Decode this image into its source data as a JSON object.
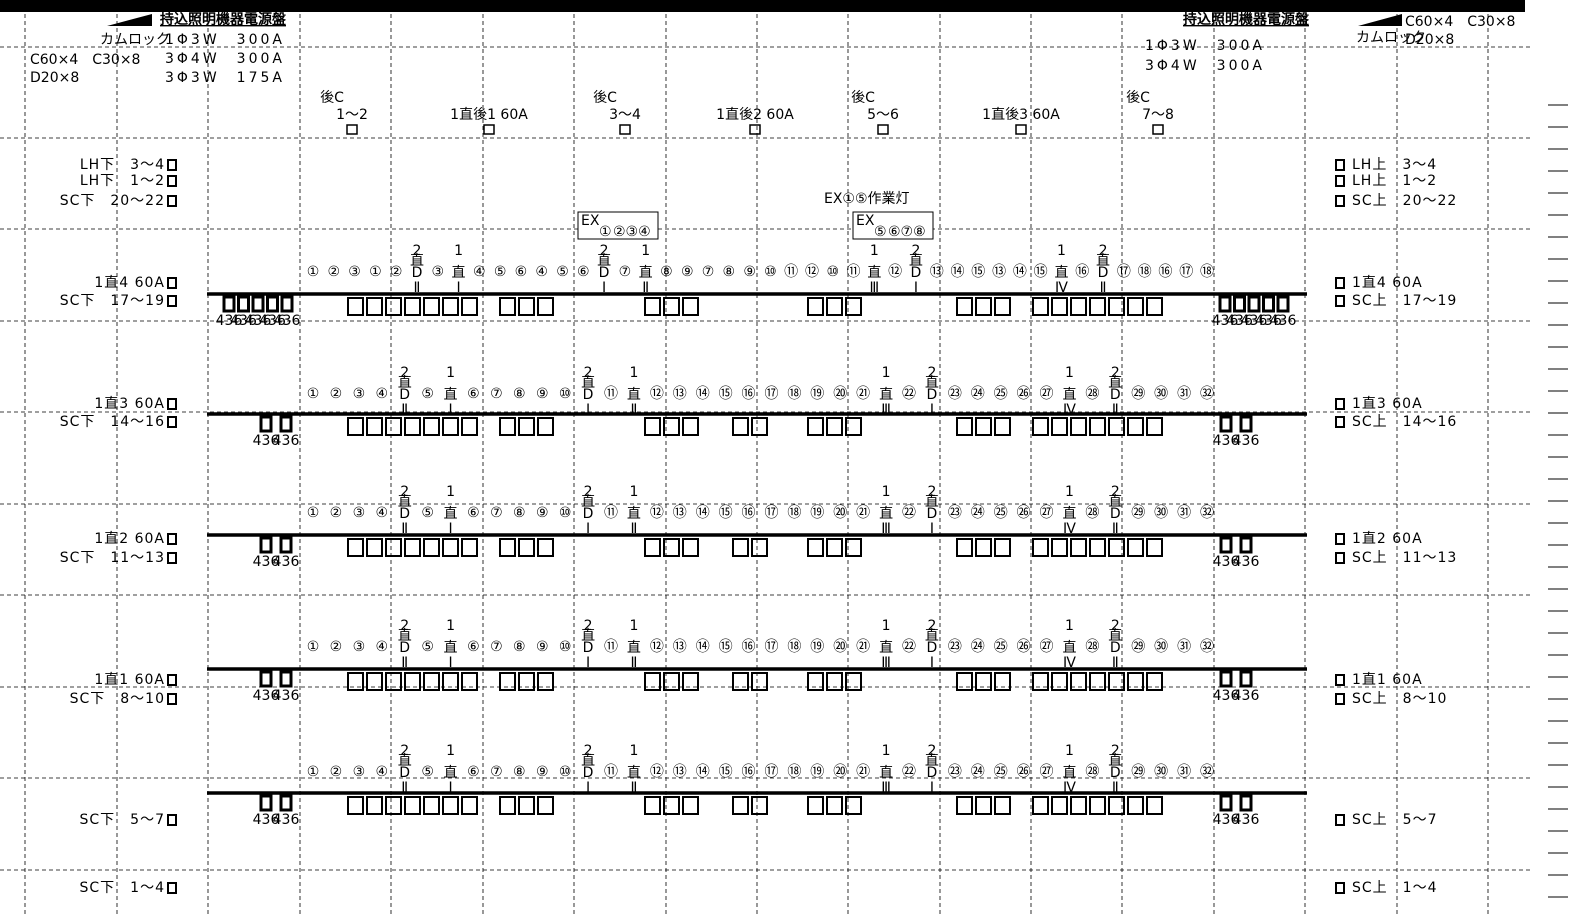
{
  "header_left": {
    "title": "持込照明機器電源盤",
    "camlock": "カムロック",
    "connectors": [
      "C60×4　C30×8",
      "D20×8"
    ],
    "specs": [
      "1Φ3W　300A",
      "3Φ4W　300A",
      "3Φ3W　175A"
    ]
  },
  "header_right": {
    "title": "持込照明機器電源盤",
    "camlock": "カムロック",
    "connectors": [
      "C60×4　C30×8",
      "D20×8"
    ],
    "specs": [
      "1Φ3W　300A",
      "3Φ4W　300A"
    ]
  },
  "outlets": [
    [
      "後C",
      "1～2"
    ],
    [
      "1直後1 60A"
    ],
    [
      "後C",
      "3～4"
    ],
    [
      "1直後2 60A"
    ],
    [
      "後C",
      "5～6"
    ],
    [
      "1直後3 60A"
    ],
    [
      "後C",
      "7～8"
    ]
  ],
  "ex": {
    "work_light": "EX①⑤作業灯",
    "boxes": [
      {
        "label": "EX",
        "first": "①",
        "rest": "②③④"
      },
      {
        "label": "EX",
        "first": "⑤",
        "rest": "⑥⑦⑧"
      }
    ]
  },
  "left_labels": [
    [
      "LH下　3～4",
      "LH下　1～2",
      "SC下　20～22"
    ],
    [
      "1直4 60A",
      "SC下　17～19"
    ],
    [
      "1直3 60A",
      "SC下　14～16"
    ],
    [
      "1直2 60A",
      "SC下　11～13"
    ],
    [
      "1直1 60A",
      "SC下　8～10"
    ],
    [
      "SC下　5～7"
    ],
    [
      "SC下　1～4"
    ]
  ],
  "right_labels": [
    [
      "LH上　3～4",
      "LH上　1～2",
      "SC上　20～22"
    ],
    [
      "1直4 60A",
      "SC上　17～19"
    ],
    [
      "1直3 60A",
      "SC上　14～16"
    ],
    [
      "1直2 60A",
      "SC上　11～13"
    ],
    [
      "1直1 60A",
      "SC上　8～10"
    ],
    [
      "SC上　5～7"
    ],
    [
      "SC上　1～4"
    ]
  ],
  "rows": [
    {
      "tokens": [
        "①",
        "②",
        "③",
        "①",
        "②",
        {
          "top": "2",
          "sub": "直",
          "text": "D",
          "bottom": "Ⅱ",
          "color": "#e8141e"
        },
        "③",
        {
          "top": "1",
          "text": "直",
          "bottom": "Ⅰ",
          "color": "#19c8dc"
        },
        "④",
        "⑤",
        "⑥",
        "④",
        "⑤",
        "⑥",
        {
          "top": "2",
          "sub": "直",
          "text": "D",
          "bottom": "Ⅰ",
          "color": "#1e28dc"
        },
        "⑦",
        {
          "top": "1",
          "text": "直",
          "bottom": "Ⅱ",
          "color": "#28c828"
        },
        "⑧",
        "⑨",
        "⑦",
        "⑧",
        "⑨",
        "⑩",
        "⑪",
        "⑫",
        "⑩",
        "⑪",
        {
          "top": "1",
          "text": "直",
          "bottom": "Ⅲ",
          "color": "#f078dc"
        },
        "⑫",
        {
          "top": "2",
          "sub": "直",
          "text": "D",
          "bottom": "Ⅰ",
          "color": "#1e28dc"
        },
        "⑬",
        "⑭",
        "⑮",
        "⑬",
        "⑭",
        "⑮",
        {
          "top": "1",
          "text": "直",
          "bottom": "Ⅳ",
          "color": "#b46414"
        },
        "⑯",
        {
          "top": "2",
          "sub": "直",
          "text": "D",
          "bottom": "Ⅱ",
          "color": "#e8141e"
        },
        "⑰",
        "⑱",
        "⑯",
        "⑰",
        "⑱"
      ],
      "fixtures_left": [
        "436",
        "436",
        "436",
        "436",
        "436"
      ],
      "fixtures_right": [
        "436",
        "436",
        "436",
        "436",
        "436"
      ]
    },
    {
      "tokens": [
        "①",
        "②",
        "③",
        "④",
        {
          "top": "2",
          "sub": "直",
          "text": "D",
          "bottom": "Ⅱ",
          "color": "#e8141e"
        },
        "⑤",
        {
          "top": "1",
          "text": "直",
          "bottom": "Ⅰ",
          "color": "#19c8dc"
        },
        "⑥",
        "⑦",
        "⑧",
        "⑨",
        "⑩",
        {
          "top": "2",
          "sub": "直",
          "text": "D",
          "bottom": "Ⅰ",
          "color": "#1e28dc"
        },
        "⑪",
        {
          "top": "1",
          "text": "直",
          "bottom": "Ⅱ",
          "color": "#28c828"
        },
        "⑫",
        "⑬",
        "⑭",
        "⑮",
        "⑯",
        "⑰",
        "⑱",
        "⑲",
        "⑳",
        "㉑",
        {
          "top": "1",
          "text": "直",
          "bottom": "Ⅲ",
          "color": "#f078dc"
        },
        "㉒",
        {
          "top": "2",
          "sub": "直",
          "text": "D",
          "bottom": "Ⅰ",
          "color": "#1e28dc"
        },
        "㉓",
        "㉔",
        "㉕",
        "㉖",
        "㉗",
        {
          "top": "1",
          "text": "直",
          "bottom": "Ⅳ",
          "color": "#b46414"
        },
        "㉘",
        {
          "top": "2",
          "sub": "直",
          "text": "D",
          "bottom": "Ⅱ",
          "color": "#e8141e"
        },
        "㉙",
        "㉚",
        "㉛",
        "㉜"
      ],
      "fixtures_left": [
        "436",
        "436"
      ],
      "fixtures_right": [
        "436",
        "436"
      ]
    },
    {
      "tokens": [
        "①",
        "②",
        "③",
        "④",
        {
          "top": "2",
          "sub": "直",
          "text": "D",
          "bottom": "Ⅱ",
          "color": "#e8141e"
        },
        "⑤",
        {
          "top": "1",
          "text": "直",
          "bottom": "Ⅰ",
          "color": "#19c8dc"
        },
        "⑥",
        "⑦",
        "⑧",
        "⑨",
        "⑩",
        {
          "top": "2",
          "sub": "直",
          "text": "D",
          "bottom": "Ⅰ",
          "color": "#1e28dc"
        },
        "⑪",
        {
          "top": "1",
          "text": "直",
          "bottom": "Ⅱ",
          "color": "#28c828"
        },
        "⑫",
        "⑬",
        "⑭",
        "⑮",
        "⑯",
        "⑰",
        "⑱",
        "⑲",
        "⑳",
        "㉑",
        {
          "top": "1",
          "text": "直",
          "bottom": "Ⅲ",
          "color": "#f078dc"
        },
        "㉒",
        {
          "top": "2",
          "sub": "直",
          "text": "D",
          "bottom": "Ⅰ",
          "color": "#1e28dc"
        },
        "㉓",
        "㉔",
        "㉕",
        "㉖",
        "㉗",
        {
          "top": "1",
          "text": "直",
          "bottom": "Ⅳ",
          "color": "#b46414"
        },
        "㉘",
        {
          "top": "2",
          "sub": "直",
          "text": "D",
          "bottom": "Ⅱ",
          "color": "#e8141e"
        },
        "㉙",
        "㉚",
        "㉛",
        "㉜"
      ],
      "fixtures_left": [
        "436",
        "436"
      ],
      "fixtures_right": [
        "436",
        "436"
      ]
    },
    {
      "tokens": [
        "①",
        "②",
        "③",
        "④",
        {
          "top": "2",
          "sub": "直",
          "text": "D",
          "bottom": "Ⅱ",
          "color": "#e8141e"
        },
        "⑤",
        {
          "top": "1",
          "text": "直",
          "bottom": "Ⅰ",
          "color": "#19c8dc"
        },
        "⑥",
        "⑦",
        "⑧",
        "⑨",
        "⑩",
        {
          "top": "2",
          "sub": "直",
          "text": "D",
          "bottom": "Ⅰ",
          "color": "#1e28dc"
        },
        "⑪",
        {
          "top": "1",
          "text": "直",
          "bottom": "Ⅱ",
          "color": "#28c828"
        },
        "⑫",
        "⑬",
        "⑭",
        "⑮",
        "⑯",
        "⑰",
        "⑱",
        "⑲",
        "⑳",
        "㉑",
        {
          "top": "1",
          "text": "直",
          "bottom": "Ⅲ",
          "color": "#f078dc"
        },
        "㉒",
        {
          "top": "2",
          "sub": "直",
          "text": "D",
          "bottom": "Ⅰ",
          "color": "#1e28dc"
        },
        "㉓",
        "㉔",
        "㉕",
        "㉖",
        "㉗",
        {
          "top": "1",
          "text": "直",
          "bottom": "Ⅳ",
          "color": "#b46414"
        },
        "㉘",
        {
          "top": "2",
          "sub": "直",
          "text": "D",
          "bottom": "Ⅱ",
          "color": "#e8141e"
        },
        "㉙",
        "㉚",
        "㉛",
        "㉜"
      ],
      "fixtures_left": [
        "436",
        "436"
      ],
      "fixtures_right": [
        "436",
        "436"
      ]
    },
    {
      "tokens": [
        "①",
        "②",
        "③",
        "④",
        {
          "top": "2",
          "sub": "直",
          "text": "D",
          "bottom": "Ⅱ",
          "color": "#e8141e"
        },
        "⑤",
        {
          "top": "1",
          "text": "直",
          "bottom": "Ⅰ",
          "color": "#19c8dc"
        },
        "⑥",
        "⑦",
        "⑧",
        "⑨",
        "⑩",
        {
          "top": "2",
          "sub": "直",
          "text": "D",
          "bottom": "Ⅰ",
          "color": "#1e28dc"
        },
        "⑪",
        {
          "top": "1",
          "text": "直",
          "bottom": "Ⅱ",
          "color": "#28c828"
        },
        "⑫",
        "⑬",
        "⑭",
        "⑮",
        "⑯",
        "⑰",
        "⑱",
        "⑲",
        "⑳",
        "㉑",
        {
          "top": "1",
          "text": "直",
          "bottom": "Ⅲ",
          "color": "#f078dc"
        },
        "㉒",
        {
          "top": "2",
          "sub": "直",
          "text": "D",
          "bottom": "Ⅰ",
          "color": "#1e28dc"
        },
        "㉓",
        "㉔",
        "㉕",
        "㉖",
        "㉗",
        {
          "top": "1",
          "text": "直",
          "bottom": "Ⅳ",
          "color": "#b46414"
        },
        "㉘",
        {
          "top": "2",
          "sub": "直",
          "text": "D",
          "bottom": "Ⅱ",
          "color": "#e8141e"
        },
        "㉙",
        "㉚",
        "㉛",
        "㉜"
      ],
      "fixtures_left": [
        "436",
        "436"
      ],
      "fixtures_right": [
        "436",
        "436"
      ]
    }
  ]
}
